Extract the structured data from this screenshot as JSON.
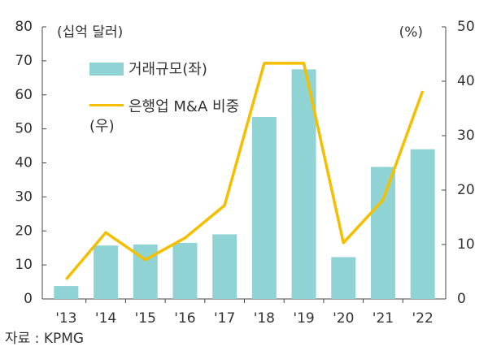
{
  "chart_data": {
    "type": "bar_line",
    "y_label": "(십억 달러)",
    "y2_label": "(%)",
    "categories": [
      "'13",
      "'14",
      "'15",
      "'16",
      "'17",
      "'18",
      "'19",
      "'20",
      "'21",
      "'22"
    ],
    "series": [
      {
        "name": "거래규모(좌)",
        "type": "bar",
        "color": "#8fd3d4",
        "values": [
          3.8,
          15.7,
          16,
          16.5,
          19,
          53.5,
          67.5,
          12.3,
          38.8,
          44
        ]
      },
      {
        "name": "은행업 M&A 비중(우)",
        "type": "line",
        "axis": "y2",
        "color": "#f5bf00",
        "values": [
          3.6,
          12.2,
          7.2,
          11.2,
          17.2,
          43.3,
          43.3,
          10.3,
          18.2,
          38.2
        ]
      }
    ],
    "ylim": [
      0,
      80
    ],
    "yticks": [
      0,
      10,
      20,
      30,
      40,
      50,
      60,
      70,
      80
    ],
    "y2lim": [
      0,
      50
    ],
    "y2ticks": [
      0,
      10,
      20,
      30,
      40,
      50
    ],
    "source": "자료 : KPMG"
  }
}
